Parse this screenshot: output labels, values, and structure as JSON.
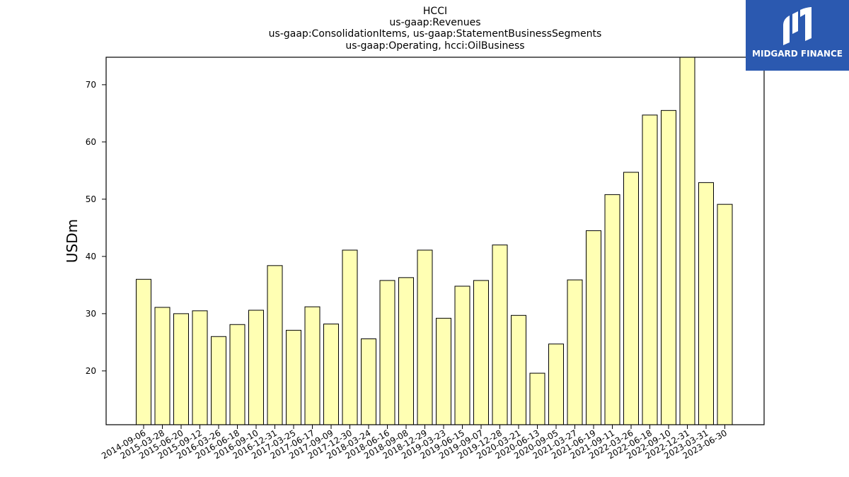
{
  "chart_data": {
    "type": "bar",
    "title": [
      "HCCI",
      "us-gaap:Revenues",
      "us-gaap:ConsolidationItems, us-gaap:StatementBusinessSegments",
      "us-gaap:Operating, hcci:OilBusiness"
    ],
    "xlabel": "",
    "ylabel": "USDm",
    "ylim": [
      10.6,
      74.8
    ],
    "yticks": [
      20,
      30,
      40,
      50,
      60,
      70
    ],
    "grid": false,
    "bar_color": "#ffffb3",
    "bar_edge_color": "#000000",
    "categories": [
      "2014-09-06",
      "2015-03-28",
      "2015-06-20",
      "2015-09-12",
      "2016-03-26",
      "2016-06-18",
      "2016-09-10",
      "2016-12-31",
      "2017-03-25",
      "2017-06-17",
      "2017-09-09",
      "2017-12-30",
      "2018-03-24",
      "2018-06-16",
      "2018-09-08",
      "2018-12-29",
      "2019-03-23",
      "2019-06-15",
      "2019-09-07",
      "2019-12-28",
      "2020-03-21",
      "2020-06-13",
      "2020-09-05",
      "2021-03-27",
      "2021-06-19",
      "2021-09-11",
      "2022-03-26",
      "2022-06-18",
      "2022-09-10",
      "2022-12-31",
      "2023-03-31",
      "2023-06-30"
    ],
    "values": [
      36.0,
      31.1,
      30.0,
      30.5,
      26.0,
      28.1,
      30.6,
      38.4,
      27.1,
      31.2,
      28.2,
      41.1,
      25.6,
      35.8,
      36.3,
      41.1,
      29.2,
      34.8,
      35.8,
      42.0,
      29.7,
      19.6,
      24.7,
      35.9,
      44.5,
      50.8,
      54.7,
      64.7,
      65.5,
      75.0,
      52.9,
      49.1
    ]
  },
  "logo": {
    "text": "MIDGARD FINANCE",
    "background": "#2b59b0"
  }
}
